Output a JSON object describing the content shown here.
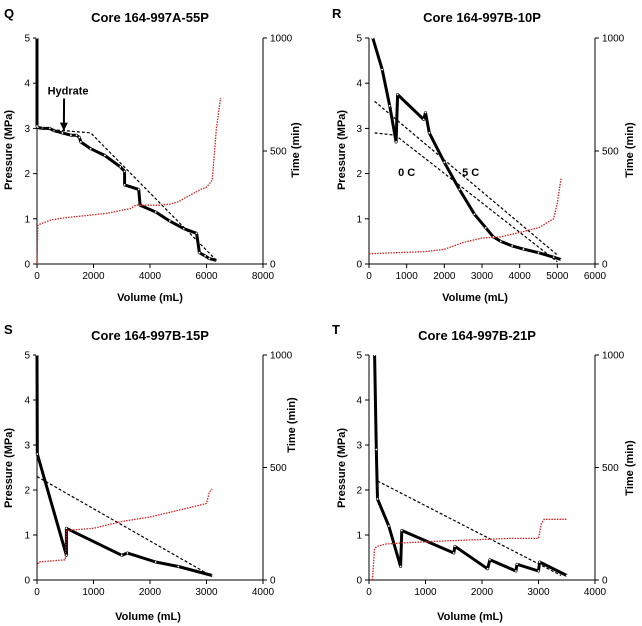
{
  "colors": {
    "pressure": "#000000",
    "time": "#d42020",
    "trend": "#000000"
  },
  "chart_data": [
    {
      "panel": "Q",
      "type": "line",
      "title": "Core 164-997A-55P",
      "xlabel": "Volume (mL)",
      "ylabel": "Pressure (MPa)",
      "y2label": "Time (min)",
      "xlim": [
        0,
        8000
      ],
      "ylim": [
        0,
        5
      ],
      "y2lim": [
        0,
        1000
      ],
      "xticks": [
        "0",
        "2000",
        "4000",
        "6000",
        "8000"
      ],
      "yticks": [
        "0",
        "1",
        "2",
        "3",
        "4",
        "5"
      ],
      "y2ticks": [
        "0",
        "500",
        "1000"
      ],
      "grid": false,
      "annotations": [
        {
          "text": "Hydrate",
          "x": 1100,
          "y": 3.75,
          "arrow_to": [
            950,
            2.95
          ]
        }
      ],
      "series": [
        {
          "role": "pressure",
          "axis": "left",
          "style": "solid-thick",
          "points": [
            [
              0,
              5
            ],
            [
              0,
              3.05
            ],
            [
              30,
              3.02
            ],
            [
              200,
              3.0
            ],
            [
              450,
              3.0
            ],
            [
              600,
              2.95
            ],
            [
              900,
              2.9
            ],
            [
              1200,
              2.85
            ],
            [
              1400,
              2.85
            ],
            [
              1500,
              2.8
            ],
            [
              1550,
              2.7
            ],
            [
              1900,
              2.55
            ],
            [
              2400,
              2.4
            ],
            [
              2950,
              2.15
            ],
            [
              3100,
              2.05
            ],
            [
              3100,
              1.75
            ],
            [
              3600,
              1.65
            ],
            [
              3650,
              1.3
            ],
            [
              4200,
              1.15
            ],
            [
              4700,
              0.95
            ],
            [
              5200,
              0.78
            ],
            [
              5650,
              0.68
            ],
            [
              5750,
              0.25
            ],
            [
              5950,
              0.18
            ],
            [
              6100,
              0.12
            ],
            [
              6350,
              0.08
            ]
          ]
        },
        {
          "role": "trend",
          "axis": "left",
          "style": "dashed",
          "points": [
            [
              0,
              3.0
            ],
            [
              1900,
              2.9
            ],
            [
              6400,
              0.05
            ]
          ]
        },
        {
          "role": "time",
          "axis": "right",
          "style": "dotted",
          "points": [
            [
              0,
              0
            ],
            [
              30,
              170
            ],
            [
              80,
              175
            ],
            [
              500,
              195
            ],
            [
              1000,
              205
            ],
            [
              1800,
              215
            ],
            [
              2500,
              225
            ],
            [
              3300,
              245
            ],
            [
              3500,
              260
            ],
            [
              4300,
              260
            ],
            [
              4700,
              265
            ],
            [
              5000,
              275
            ],
            [
              5200,
              290
            ],
            [
              5500,
              310
            ],
            [
              5800,
              330
            ],
            [
              6000,
              340
            ],
            [
              6200,
              370
            ],
            [
              6350,
              600
            ],
            [
              6500,
              735
            ]
          ]
        }
      ]
    },
    {
      "panel": "R",
      "type": "line",
      "title": "Core 164-997B-10P",
      "xlabel": "Volume (mL)",
      "ylabel": "Pressure (MPa)",
      "y2label": "Time (min)",
      "xlim": [
        0,
        6000
      ],
      "ylim": [
        0,
        5
      ],
      "y2lim": [
        0,
        1000
      ],
      "xticks": [
        "0",
        "1000",
        "2000",
        "3000",
        "4000",
        "5000",
        "6000"
      ],
      "yticks": [
        "0",
        "1",
        "2",
        "3",
        "4",
        "5"
      ],
      "y2ticks": [
        "0",
        "500",
        "1000"
      ],
      "grid": false,
      "annotations": [
        {
          "text": "0 C",
          "x": 1000,
          "y": 1.95
        },
        {
          "text": "5 C",
          "x": 2700,
          "y": 1.95
        }
      ],
      "series": [
        {
          "role": "pressure",
          "axis": "left",
          "style": "solid-thick",
          "points": [
            [
              100,
              5
            ],
            [
              350,
              4.3
            ],
            [
              550,
              3.5
            ],
            [
              720,
              2.7
            ],
            [
              760,
              3.75
            ],
            [
              1450,
              3.2
            ],
            [
              1500,
              3.35
            ],
            [
              1600,
              2.9
            ],
            [
              2000,
              2.25
            ],
            [
              2400,
              1.65
            ],
            [
              2800,
              1.1
            ],
            [
              3100,
              0.8
            ],
            [
              3300,
              0.6
            ],
            [
              3500,
              0.5
            ],
            [
              3800,
              0.4
            ],
            [
              4100,
              0.33
            ],
            [
              4500,
              0.25
            ],
            [
              4900,
              0.15
            ],
            [
              5100,
              0.1
            ]
          ]
        },
        {
          "role": "trend",
          "label": "0 C",
          "axis": "left",
          "style": "dashed",
          "points": [
            [
              150,
              2.9
            ],
            [
              700,
              2.85
            ],
            [
              5000,
              0.05
            ]
          ]
        },
        {
          "role": "trend",
          "label": "5 C",
          "axis": "left",
          "style": "dashed",
          "points": [
            [
              150,
              3.6
            ],
            [
              5000,
              0.2
            ]
          ]
        },
        {
          "role": "time",
          "axis": "right",
          "style": "dotted",
          "points": [
            [
              0,
              45
            ],
            [
              700,
              50
            ],
            [
              1500,
              55
            ],
            [
              2000,
              65
            ],
            [
              2500,
              95
            ],
            [
              3000,
              115
            ],
            [
              3500,
              120
            ],
            [
              4000,
              140
            ],
            [
              4500,
              160
            ],
            [
              4900,
              200
            ],
            [
              5000,
              270
            ],
            [
              5100,
              380
            ]
          ]
        }
      ]
    },
    {
      "panel": "S",
      "type": "line",
      "title": "Core 164-997B-15P",
      "xlabel": "Volume (mL)",
      "ylabel": "Pressure (MPa)",
      "y2label": "Time (min)",
      "xlim": [
        0,
        4000
      ],
      "ylim": [
        0,
        5
      ],
      "y2lim": [
        0,
        1000
      ],
      "xticks": [
        "0",
        "1000",
        "2000",
        "3000",
        "4000"
      ],
      "yticks": [
        "0",
        "1",
        "2",
        "3",
        "4",
        "5"
      ],
      "y2ticks": [
        "0",
        "500",
        "1000"
      ],
      "grid": false,
      "annotations": [],
      "series": [
        {
          "role": "pressure",
          "axis": "left",
          "style": "solid-thick",
          "points": [
            [
              0,
              5
            ],
            [
              5,
              2.8
            ],
            [
              520,
              0.55
            ],
            [
              520,
              1.15
            ],
            [
              1500,
              0.55
            ],
            [
              1600,
              0.6
            ],
            [
              2100,
              0.4
            ],
            [
              2500,
              0.3
            ],
            [
              3100,
              0.1
            ]
          ]
        },
        {
          "role": "trend",
          "axis": "left",
          "style": "dashed",
          "points": [
            [
              0,
              2.3
            ],
            [
              3100,
              0.08
            ]
          ]
        },
        {
          "role": "time",
          "axis": "right",
          "style": "dotted",
          "points": [
            [
              0,
              60
            ],
            [
              30,
              80
            ],
            [
              500,
              90
            ],
            [
              520,
              220
            ],
            [
              1000,
              230
            ],
            [
              1500,
              260
            ],
            [
              2000,
              280
            ],
            [
              2500,
              310
            ],
            [
              3000,
              340
            ],
            [
              3050,
              390
            ],
            [
              3100,
              405
            ]
          ]
        }
      ]
    },
    {
      "panel": "T",
      "type": "line",
      "title": "Core 164-997B-21P",
      "xlabel": "Volume (mL)",
      "ylabel": "Pressure (MPa)",
      "y2label": "Time (min)",
      "xlim": [
        0,
        4000
      ],
      "ylim": [
        0,
        5
      ],
      "y2lim": [
        0,
        1000
      ],
      "xticks": [
        "0",
        "1000",
        "2000",
        "3000",
        "4000"
      ],
      "yticks": [
        "0",
        "1",
        "2",
        "3",
        "4",
        "5"
      ],
      "y2ticks": [
        "0",
        "500",
        "1000"
      ],
      "grid": false,
      "annotations": [],
      "series": [
        {
          "role": "pressure",
          "axis": "left",
          "style": "solid-thick",
          "points": [
            [
              100,
              5
            ],
            [
              130,
              2.9
            ],
            [
              150,
              1.8
            ],
            [
              350,
              1.2
            ],
            [
              560,
              0.3
            ],
            [
              580,
              1.1
            ],
            [
              1500,
              0.6
            ],
            [
              1520,
              0.75
            ],
            [
              2100,
              0.25
            ],
            [
              2140,
              0.45
            ],
            [
              2600,
              0.2
            ],
            [
              2620,
              0.35
            ],
            [
              3000,
              0.2
            ],
            [
              3020,
              0.4
            ],
            [
              3500,
              0.1
            ]
          ]
        },
        {
          "role": "trend",
          "axis": "left",
          "style": "dashed",
          "points": [
            [
              150,
              2.2
            ],
            [
              3400,
              0.1
            ]
          ]
        },
        {
          "role": "time",
          "axis": "right",
          "style": "dotted",
          "points": [
            [
              60,
              0
            ],
            [
              100,
              140
            ],
            [
              150,
              150
            ],
            [
              300,
              160
            ],
            [
              600,
              165
            ],
            [
              1000,
              170
            ],
            [
              1500,
              175
            ],
            [
              2000,
              180
            ],
            [
              2500,
              185
            ],
            [
              3000,
              185
            ],
            [
              3050,
              250
            ],
            [
              3100,
              270
            ],
            [
              3500,
              270
            ]
          ]
        }
      ]
    }
  ]
}
